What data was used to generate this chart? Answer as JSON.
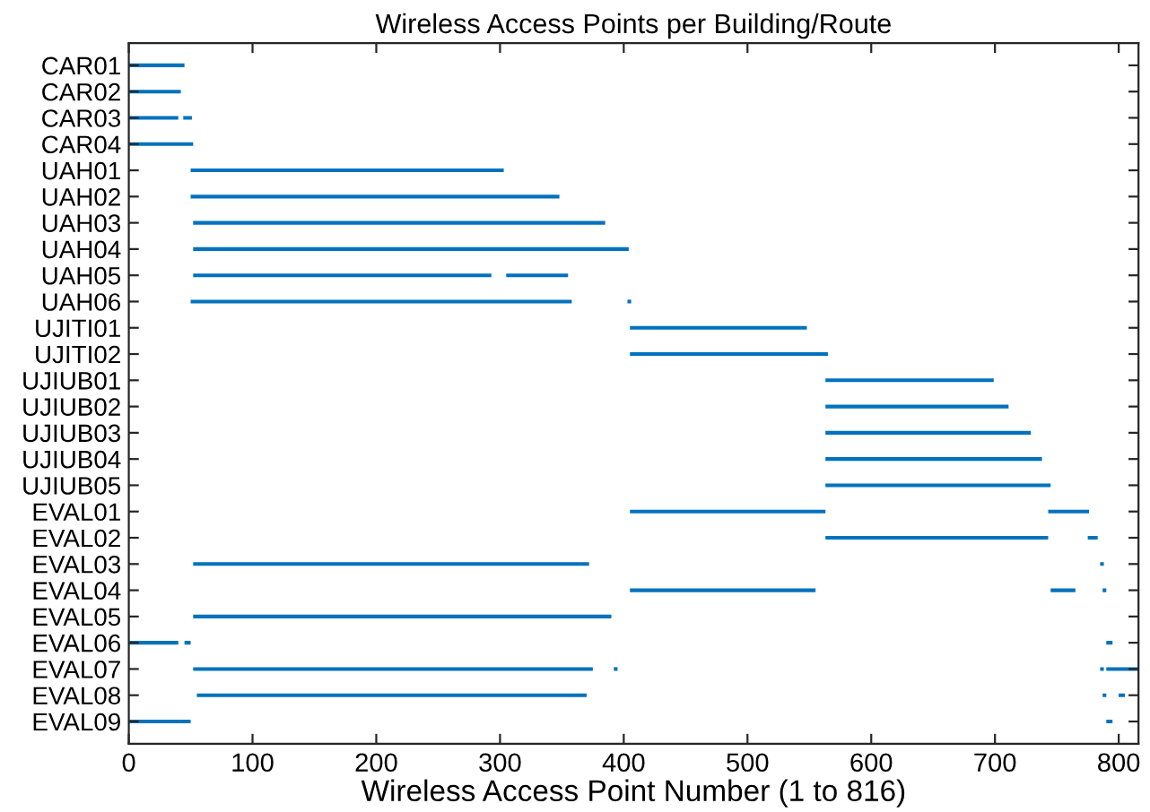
{
  "chart_data": {
    "type": "bar",
    "orientation": "horizontal",
    "title": "Wireless Access Points per Building/Route",
    "xlabel": "Wireless Access Point Number (1 to 816)",
    "categories": [
      "CAR01",
      "CAR02",
      "CAR03",
      "CAR04",
      "UAH01",
      "UAH02",
      "UAH03",
      "UAH04",
      "UAH05",
      "UAH06",
      "UJITI01",
      "UJITI02",
      "UJIUB01",
      "UJIUB02",
      "UJIUB03",
      "UJIUB04",
      "UJIUB05",
      "EVAL01",
      "EVAL02",
      "EVAL03",
      "EVAL04",
      "EVAL05",
      "EVAL06",
      "EVAL07",
      "EVAL08",
      "EVAL09"
    ],
    "series": [
      {
        "color": "#0072bd",
        "base": [
          0,
          0,
          0,
          0,
          50,
          50,
          52,
          52,
          52,
          50,
          405,
          405,
          563,
          563,
          563,
          563,
          563,
          405,
          563,
          52,
          405,
          52,
          0,
          52,
          55,
          0
        ],
        "values": [
          45,
          42,
          40,
          52,
          253,
          298,
          333,
          352,
          241,
          308,
          143,
          160,
          136,
          148,
          166,
          175,
          182,
          158,
          180,
          320,
          150,
          338,
          40,
          323,
          315,
          50
        ]
      },
      {
        "color": "#0072bd",
        "base": [
          null,
          null,
          44,
          null,
          null,
          null,
          null,
          null,
          305,
          403,
          null,
          null,
          null,
          null,
          null,
          null,
          null,
          743,
          775,
          785,
          745,
          null,
          45,
          392,
          787,
          790
        ],
        "values": [
          null,
          null,
          7,
          null,
          null,
          null,
          null,
          null,
          50,
          3,
          null,
          null,
          null,
          null,
          null,
          null,
          null,
          33,
          8,
          3,
          20,
          null,
          5,
          3,
          3,
          5
        ]
      },
      {
        "color": "#0072bd",
        "base": [
          null,
          null,
          null,
          null,
          null,
          null,
          null,
          null,
          null,
          null,
          null,
          null,
          null,
          null,
          null,
          null,
          null,
          null,
          null,
          null,
          787,
          null,
          790,
          785,
          800,
          null
        ],
        "values": [
          null,
          null,
          null,
          null,
          null,
          null,
          null,
          null,
          null,
          null,
          null,
          null,
          null,
          null,
          null,
          null,
          null,
          null,
          null,
          null,
          3,
          null,
          5,
          3,
          5,
          null
        ]
      },
      {
        "color": "#0072bd",
        "base": [
          null,
          null,
          null,
          null,
          null,
          null,
          null,
          null,
          null,
          null,
          null,
          null,
          null,
          null,
          null,
          null,
          null,
          null,
          null,
          null,
          null,
          null,
          null,
          790,
          null,
          null
        ],
        "values": [
          null,
          null,
          null,
          null,
          null,
          null,
          null,
          null,
          null,
          null,
          null,
          null,
          null,
          null,
          null,
          null,
          null,
          null,
          null,
          null,
          null,
          null,
          null,
          26,
          null,
          null
        ]
      }
    ],
    "xlim": [
      0,
      816
    ],
    "xticks": [
      0,
      100,
      200,
      300,
      400,
      500,
      600,
      700,
      800
    ],
    "grid": false,
    "legend": false
  }
}
